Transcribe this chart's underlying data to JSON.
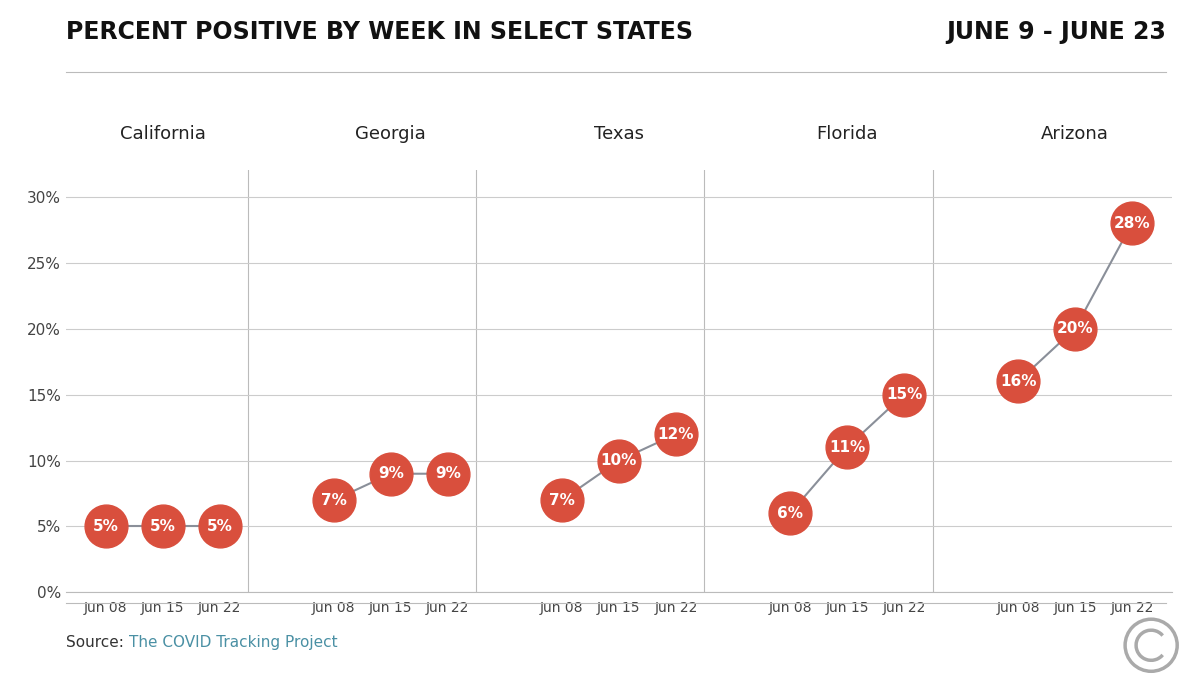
{
  "title_left": "PERCENT POSITIVE BY WEEK IN SELECT STATES",
  "title_right": "JUNE 9 - JUNE 23",
  "states": [
    "California",
    "Georgia",
    "Texas",
    "Florida",
    "Arizona"
  ],
  "x_labels": [
    "Jun 08",
    "Jun 15",
    "Jun 22"
  ],
  "values": {
    "California": [
      5,
      5,
      5
    ],
    "Georgia": [
      7,
      9,
      9
    ],
    "Texas": [
      7,
      10,
      12
    ],
    "Florida": [
      6,
      11,
      15
    ],
    "Arizona": [
      16,
      20,
      28
    ]
  },
  "dot_color": "#D94F3D",
  "line_color": "#8A8F99",
  "text_color_dot": "#FFFFFF",
  "background_color": "#FFFFFF",
  "ylim": [
    0,
    32
  ],
  "yticks": [
    0,
    5,
    10,
    15,
    20,
    25,
    30
  ],
  "ytick_labels": [
    "0%",
    "5%",
    "10%",
    "15%",
    "20%",
    "25%",
    "30%"
  ],
  "source_prefix": "Source: ",
  "source_link": "The COVID Tracking Project",
  "source_prefix_color": "#333333",
  "source_link_color": "#4A90A4",
  "title_fontsize": 17,
  "state_label_fontsize": 13,
  "dot_fontsize": 11,
  "dot_size": 950,
  "grid_color": "#CCCCCC",
  "separator_color": "#BBBBBB"
}
